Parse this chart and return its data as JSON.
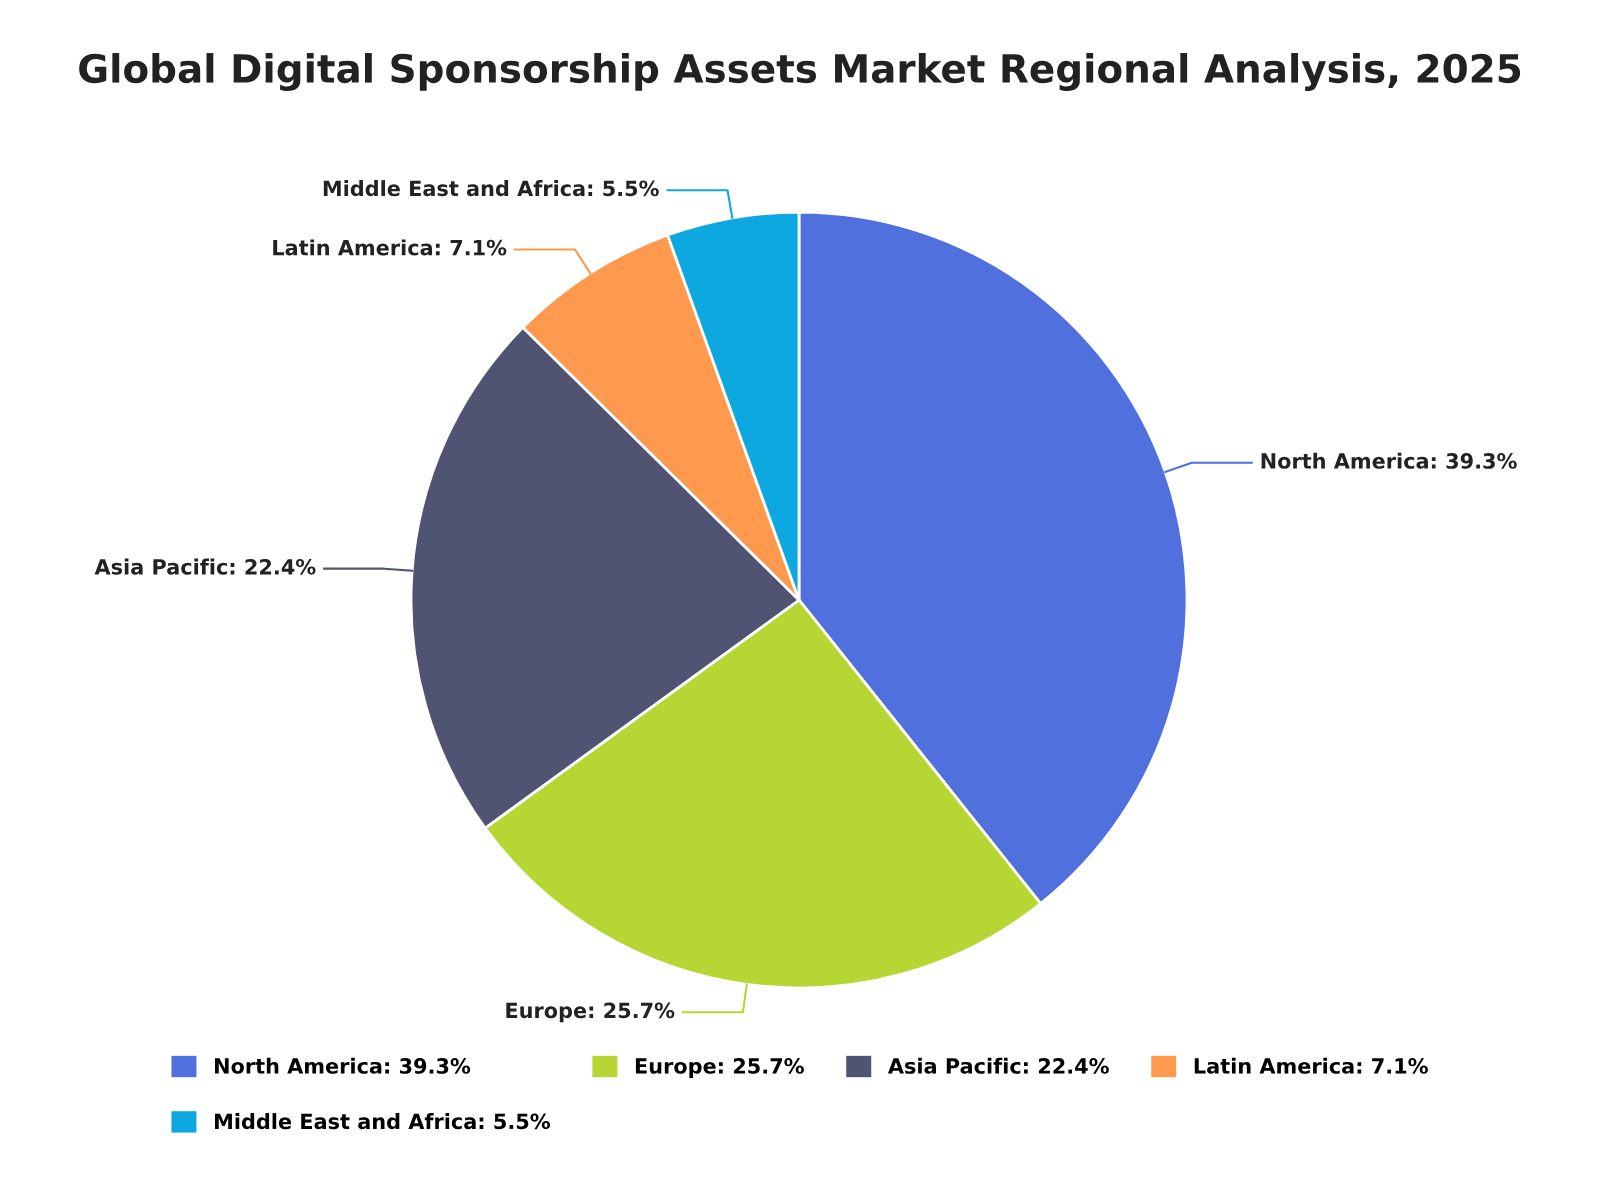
{
  "chart_data": {
    "type": "pie",
    "title": "Global Digital Sponsorship Assets Market Regional Analysis, 2025",
    "categories": [
      "North America",
      "Europe",
      "Asia Pacific",
      "Latin America",
      "Middle East and Africa"
    ],
    "values": [
      39.3,
      25.7,
      22.4,
      7.1,
      5.5
    ],
    "value_labels": [
      "39.3%",
      "25.7%",
      "22.4%",
      "7.1%",
      "5.5%"
    ],
    "colors": [
      "#5070dd",
      "#b6d634",
      "#505372",
      "#ff994d",
      "#0ca8df"
    ],
    "legend": "bottom"
  }
}
